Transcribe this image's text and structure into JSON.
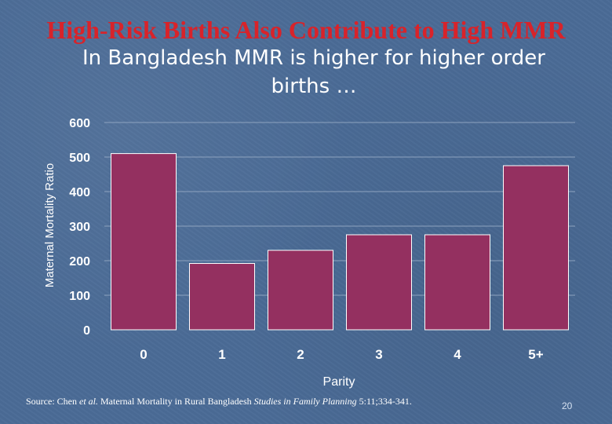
{
  "slide": {
    "title": "High-Risk Births Also Contribute to High MMR",
    "subtitle": "In Bangladesh MMR is higher for higher order births …",
    "source": {
      "prefix": "Source: Chen ",
      "etal": "et al.",
      "middle": " Maternal Mortality in Rural Bangladesh ",
      "journal": "Studies in Family Planning",
      "suffix": " 5:11;334-341."
    },
    "page_number": "20"
  },
  "chart_data": {
    "type": "bar",
    "categories": [
      "0",
      "1",
      "2",
      "3",
      "4",
      "5+"
    ],
    "values": [
      510,
      192,
      230,
      275,
      275,
      475
    ],
    "title": "",
    "xlabel": "Parity",
    "ylabel": "Maternal Mortality Ratio",
    "ylim": [
      0,
      600
    ],
    "yticks": [
      0,
      100,
      200,
      300,
      400,
      500,
      600
    ],
    "grid": true,
    "legend": "none"
  },
  "colors": {
    "bar": "#943060",
    "bar_edge": "#ffffff",
    "tick_label": "#ffffff",
    "grid": "#8ea3bf",
    "title": "#d8232a"
  }
}
